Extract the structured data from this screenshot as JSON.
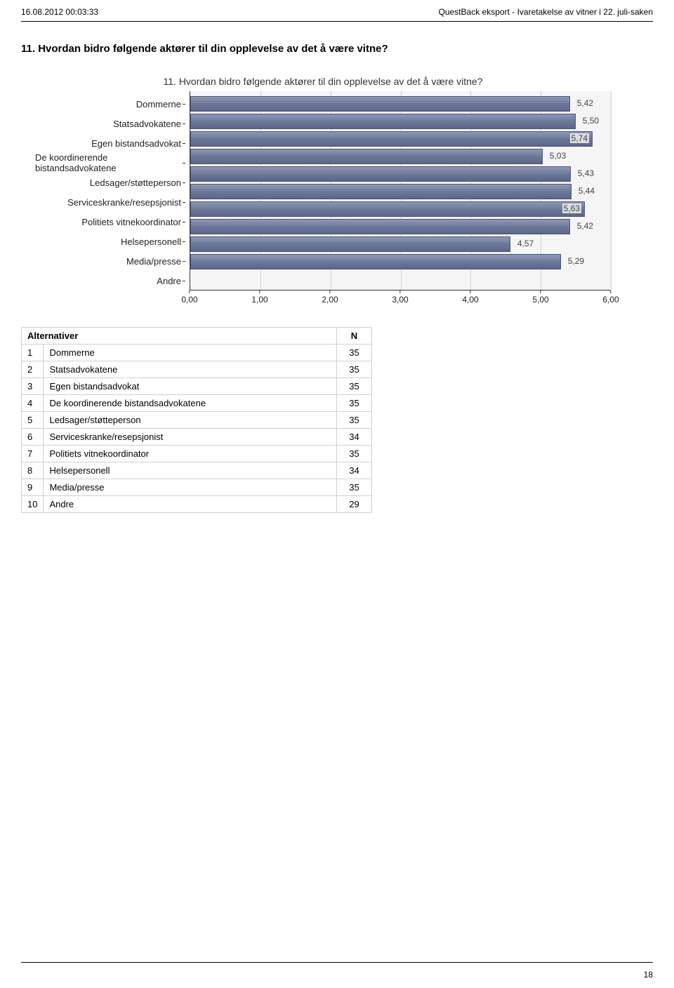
{
  "header": {
    "left": "16.08.2012 00:03:33",
    "right": "QuestBack eksport - Ivaretakelse av vitner i 22. juli-saken"
  },
  "question_heading": "11. Hvordan bidro følgende aktører til din opplevelse av det å være vitne?",
  "chart": {
    "type": "bar",
    "title": "11. Hvordan bidro følgende aktører til din opplevelse av det å være vitne?",
    "title_fontsize": 14,
    "label_fontsize": 13,
    "value_fontsize": 12,
    "background_color": "#f5f5f5",
    "grid_color": "#cfcfcf",
    "axis_color": "#333333",
    "bar_gradient_top": "#8f97b5",
    "bar_gradient_mid": "#6d7899",
    "bar_gradient_bottom": "#5b668a",
    "bar_border": "#4a5476",
    "xlim": [
      0,
      6
    ],
    "xtick_step": 1,
    "xticks": [
      "0,00",
      "1,00",
      "2,00",
      "3,00",
      "4,00",
      "5,00",
      "6,00"
    ],
    "categories": [
      "Dommerne",
      "Statsadvokatene",
      "Egen bistandsadvokat",
      "De koordinerende bistandsadvokatene",
      "Ledsager/støtteperson",
      "Serviceskranke/resepsjonist",
      "Politiets vitnekoordinator",
      "Helsepersonell",
      "Media/presse",
      "Andre"
    ],
    "values": [
      5.42,
      5.5,
      5.74,
      5.03,
      5.43,
      5.44,
      5.63,
      5.42,
      4.57,
      5.29
    ],
    "value_labels": [
      "5,42",
      "5,50",
      "5,74",
      "5,03",
      "5,43",
      "5,44",
      "5,63",
      "5,42",
      "4,57",
      "5,29"
    ]
  },
  "table": {
    "header_alt": "Alternativer",
    "header_n": "N",
    "rows": [
      {
        "idx": "1",
        "label": "Dommerne",
        "n": "35"
      },
      {
        "idx": "2",
        "label": "Statsadvokatene",
        "n": "35"
      },
      {
        "idx": "3",
        "label": "Egen bistandsadvokat",
        "n": "35"
      },
      {
        "idx": "4",
        "label": "De koordinerende bistandsadvokatene",
        "n": "35"
      },
      {
        "idx": "5",
        "label": "Ledsager/støtteperson",
        "n": "35"
      },
      {
        "idx": "6",
        "label": "Serviceskranke/resepsjonist",
        "n": "34"
      },
      {
        "idx": "7",
        "label": "Politiets vitnekoordinator",
        "n": "35"
      },
      {
        "idx": "8",
        "label": "Helsepersonell",
        "n": "34"
      },
      {
        "idx": "9",
        "label": "Media/presse",
        "n": "35"
      },
      {
        "idx": "10",
        "label": "Andre",
        "n": "29"
      }
    ]
  },
  "page_number": "18"
}
